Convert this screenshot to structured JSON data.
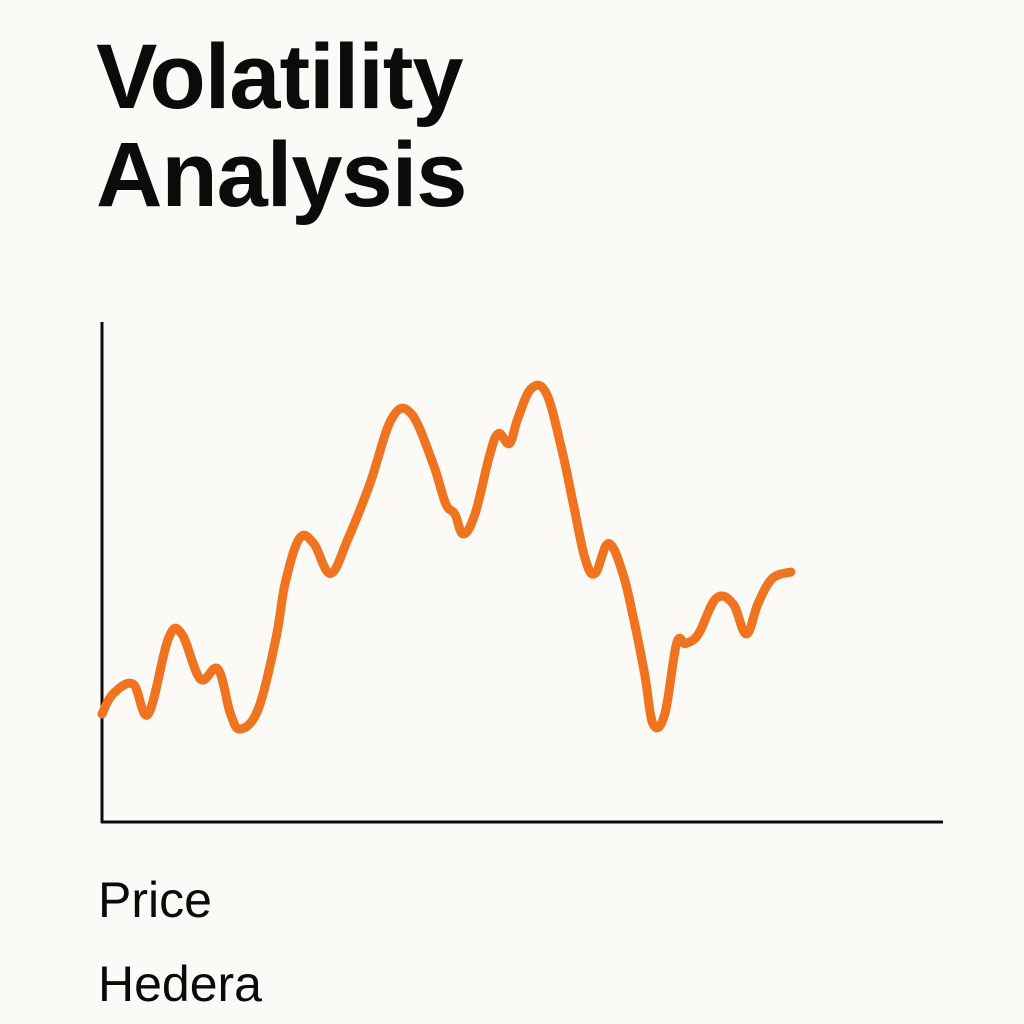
{
  "chart_data": {
    "type": "line",
    "title_line1": "Volatility",
    "title_line2": "Analysis",
    "xlabel": "Price",
    "subtitle": "Hedera",
    "ylim": [
      0,
      100
    ],
    "grid": false,
    "legend": "none",
    "series": [
      {
        "color": "#f07420",
        "points": [
          [
            0,
            21.6
          ],
          [
            1.3,
            25.6
          ],
          [
            3.7,
            27.6
          ],
          [
            5.5,
            21.6
          ],
          [
            7.9,
            36.7
          ],
          [
            9.5,
            37.6
          ],
          [
            11.7,
            28.6
          ],
          [
            13.8,
            30.6
          ],
          [
            15.3,
            21.6
          ],
          [
            16.5,
            18.6
          ],
          [
            18.6,
            22.6
          ],
          [
            20.7,
            36.7
          ],
          [
            21.8,
            47.7
          ],
          [
            23.5,
            56.7
          ],
          [
            25.2,
            55.7
          ],
          [
            27.2,
            49.7
          ],
          [
            29.3,
            56.7
          ],
          [
            31.9,
            67.7
          ],
          [
            34.5,
            80.7
          ],
          [
            36.8,
            81.7
          ],
          [
            39.4,
            71.7
          ],
          [
            40.9,
            63.7
          ],
          [
            42.0,
            61.6
          ],
          [
            43.0,
            57.6
          ],
          [
            44.4,
            61.6
          ],
          [
            46.2,
            73.7
          ],
          [
            47.2,
            77.7
          ],
          [
            48.5,
            75.7
          ],
          [
            49.5,
            80.7
          ],
          [
            51.1,
            86.7
          ],
          [
            52.9,
            85.7
          ],
          [
            54.7,
            74.7
          ],
          [
            56.1,
            63.7
          ],
          [
            57.5,
            52.7
          ],
          [
            58.7,
            49.7
          ],
          [
            60.3,
            55.7
          ],
          [
            62.0,
            49.7
          ],
          [
            63.4,
            39.7
          ],
          [
            64.6,
            29.6
          ],
          [
            65.6,
            19.6
          ],
          [
            67.0,
            21.6
          ],
          [
            68.4,
            35.7
          ],
          [
            69.5,
            35.7
          ],
          [
            71.0,
            37.6
          ],
          [
            73.1,
            44.7
          ],
          [
            75.1,
            43.7
          ],
          [
            76.7,
            37.6
          ],
          [
            78.1,
            43.7
          ],
          [
            79.8,
            48.7
          ],
          [
            82.0,
            50.0
          ]
        ]
      }
    ]
  }
}
